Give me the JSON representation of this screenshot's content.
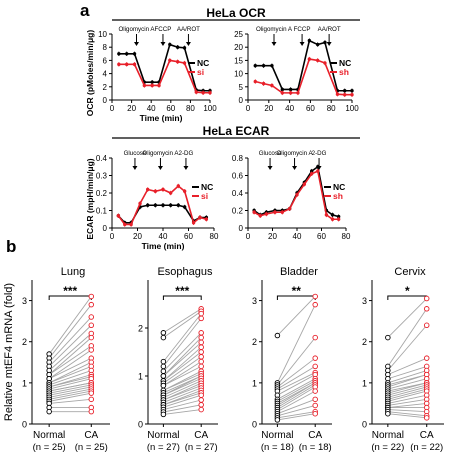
{
  "panel_labels": {
    "a": "a",
    "b": "b"
  },
  "headers": {
    "ocr": "HeLa OCR",
    "ecar": "HeLa ECAR"
  },
  "colors": {
    "nc": "#000000",
    "treat": "#e8202a",
    "grey_line": "#a6a6a6"
  },
  "chart_data": [
    {
      "type": "line",
      "ylabel": "OCR (pMoles/min/μg)",
      "xlabel": "Time (min)",
      "xlim": [
        0,
        100
      ],
      "ylim": [
        0,
        10
      ],
      "xticks": [
        0,
        20,
        40,
        60,
        80,
        100
      ],
      "yticks": [
        0,
        2,
        4,
        6,
        8,
        10
      ],
      "x_tick_labels": [
        "0",
        "20",
        "40",
        "60",
        "80",
        "100"
      ],
      "y_tick_labels": [
        "0",
        "2",
        "4",
        "6",
        "8",
        "10"
      ],
      "injections": [
        {
          "label": "Oligomycin A",
          "x": 25
        },
        {
          "label": "FCCP",
          "x": 52
        },
        {
          "label": "AA/ROT",
          "x": 78
        }
      ],
      "series": [
        {
          "name": "NC",
          "x": [
            7,
            15,
            23,
            33,
            41,
            48,
            59,
            67,
            74,
            86,
            93,
            100
          ],
          "values": [
            7.0,
            7.0,
            7.0,
            2.7,
            2.7,
            2.7,
            8.4,
            8.0,
            7.9,
            1.5,
            1.4,
            1.4
          ]
        },
        {
          "name": "si",
          "x": [
            7,
            15,
            23,
            33,
            41,
            48,
            59,
            67,
            74,
            86,
            93,
            100
          ],
          "values": [
            5.4,
            5.4,
            5.4,
            2.2,
            2.2,
            2.2,
            6.0,
            5.8,
            5.6,
            1.2,
            1.1,
            1.1
          ]
        }
      ],
      "legend": "right"
    },
    {
      "type": "line",
      "xlim": [
        0,
        100
      ],
      "ylim": [
        0,
        25
      ],
      "xticks": [
        0,
        20,
        40,
        60,
        80,
        100
      ],
      "yticks": [
        0,
        5,
        10,
        15,
        20,
        25
      ],
      "x_tick_labels": [
        "0",
        "20",
        "40",
        "60",
        "80",
        "100"
      ],
      "y_tick_labels": [
        "0",
        "5",
        "10",
        "15",
        "20",
        "25"
      ],
      "injections": [
        {
          "label": "Oligomycin A",
          "x": 25
        },
        {
          "label": "FCCP",
          "x": 52
        },
        {
          "label": "AA/ROT",
          "x": 78
        }
      ],
      "series": [
        {
          "name": "NC",
          "x": [
            7,
            15,
            23,
            33,
            41,
            48,
            59,
            67,
            74,
            86,
            93,
            100
          ],
          "values": [
            13.0,
            13.0,
            13.0,
            4.0,
            4.0,
            4.0,
            22.5,
            21.0,
            21.8,
            3.5,
            3.5,
            3.5
          ]
        },
        {
          "name": "sh",
          "x": [
            7,
            15,
            23,
            33,
            41,
            48,
            59,
            67,
            74,
            86,
            93,
            100
          ],
          "values": [
            7.0,
            6.2,
            5.5,
            2.7,
            2.7,
            2.7,
            15.5,
            15.0,
            14.0,
            2.2,
            2.0,
            2.0
          ]
        }
      ],
      "legend": "right"
    },
    {
      "type": "line",
      "ylabel": "ECAR (mpH/min/μg)",
      "xlabel": "Time (min)",
      "xlim": [
        0,
        80
      ],
      "ylim": [
        0,
        0.4
      ],
      "xticks": [
        0,
        20,
        40,
        60,
        80
      ],
      "yticks": [
        0,
        0.1,
        0.2,
        0.3,
        0.4
      ],
      "x_tick_labels": [
        "0",
        "20",
        "40",
        "60",
        "80"
      ],
      "y_tick_labels": [
        "0",
        "0.1",
        "0.2",
        "0.3",
        "0.4"
      ],
      "injections": [
        {
          "label": "Glucose",
          "x": 18
        },
        {
          "label": "Oligomycin A",
          "x": 38
        },
        {
          "label": "2-DG",
          "x": 58
        }
      ],
      "series": [
        {
          "name": "NC",
          "x": [
            5,
            10,
            15,
            22,
            28,
            34,
            40,
            46,
            52,
            57,
            64,
            69,
            74
          ],
          "values": [
            0.07,
            0.03,
            0.03,
            0.12,
            0.13,
            0.13,
            0.13,
            0.13,
            0.13,
            0.12,
            0.04,
            0.06,
            0.06
          ]
        },
        {
          "name": "si",
          "x": [
            5,
            10,
            15,
            22,
            28,
            34,
            40,
            46,
            52,
            57,
            64,
            69,
            74
          ],
          "values": [
            0.07,
            0.02,
            0.02,
            0.14,
            0.22,
            0.21,
            0.22,
            0.2,
            0.24,
            0.21,
            0.03,
            0.06,
            0.05
          ]
        }
      ],
      "legend": "right"
    },
    {
      "type": "line",
      "xlim": [
        0,
        80
      ],
      "ylim": [
        0,
        0.8
      ],
      "xticks": [
        0,
        20,
        40,
        60,
        80
      ],
      "yticks": [
        0,
        0.2,
        0.4,
        0.6,
        0.8
      ],
      "x_tick_labels": [
        "0",
        "20",
        "40",
        "60",
        "80"
      ],
      "y_tick_labels": [
        "0",
        "0.2",
        "0.4",
        "0.6",
        "0.8"
      ],
      "injections": [
        {
          "label": "Glucose",
          "x": 18
        },
        {
          "label": "Oligomycin A",
          "x": 38
        },
        {
          "label": "2-DG",
          "x": 58
        }
      ],
      "series": [
        {
          "name": "NC",
          "x": [
            5,
            10,
            15,
            22,
            28,
            34,
            40,
            46,
            52,
            57,
            64,
            69,
            74
          ],
          "values": [
            0.2,
            0.15,
            0.18,
            0.2,
            0.2,
            0.22,
            0.4,
            0.52,
            0.65,
            0.7,
            0.2,
            0.15,
            0.13
          ]
        },
        {
          "name": "sh",
          "x": [
            5,
            10,
            15,
            22,
            28,
            34,
            40,
            46,
            52,
            57,
            64,
            69,
            74
          ],
          "values": [
            0.18,
            0.14,
            0.16,
            0.18,
            0.18,
            0.22,
            0.38,
            0.5,
            0.62,
            0.65,
            0.15,
            0.1,
            0.1
          ]
        }
      ],
      "legend": "right"
    },
    {
      "type": "scatter",
      "subtype": "paired",
      "title": "Lung",
      "ylabel": "Relative mtEF4 mRNA (fold)",
      "ylim": [
        0,
        3.5
      ],
      "yticks": [
        0,
        1,
        2,
        3
      ],
      "y_tick_labels": [
        "0",
        "1",
        "2",
        "3"
      ],
      "categories": [
        "Normal",
        "CA"
      ],
      "n_labels": [
        "(n = 25)",
        "(n = 25)"
      ],
      "significance": "***",
      "pairs": [
        [
          1.7,
          3.1
        ],
        [
          1.6,
          2.9
        ],
        [
          1.5,
          2.6
        ],
        [
          1.4,
          2.4
        ],
        [
          1.3,
          2.2
        ],
        [
          1.2,
          2.1
        ],
        [
          1.2,
          1.9
        ],
        [
          1.1,
          1.8
        ],
        [
          1.1,
          1.6
        ],
        [
          1.0,
          1.5
        ],
        [
          1.0,
          1.4
        ],
        [
          0.95,
          1.3
        ],
        [
          0.9,
          1.2
        ],
        [
          0.9,
          1.15
        ],
        [
          0.85,
          1.1
        ],
        [
          0.8,
          1.0
        ],
        [
          0.8,
          1.0
        ],
        [
          0.75,
          0.95
        ],
        [
          0.7,
          0.9
        ],
        [
          0.65,
          0.85
        ],
        [
          0.6,
          0.8
        ],
        [
          0.55,
          0.75
        ],
        [
          0.5,
          0.6
        ],
        [
          0.4,
          0.4
        ],
        [
          0.3,
          0.3
        ]
      ]
    },
    {
      "type": "scatter",
      "subtype": "paired",
      "title": "Esophagus",
      "ylim": [
        0,
        3.0
      ],
      "yticks": [
        0,
        1,
        2
      ],
      "y_tick_labels": [
        "0",
        "1",
        "2"
      ],
      "categories": [
        "Normal",
        "CA"
      ],
      "n_labels": [
        "(n = 27)",
        "(n = 27)"
      ],
      "significance": "***",
      "pairs": [
        [
          1.9,
          2.4
        ],
        [
          1.8,
          2.35
        ],
        [
          1.3,
          2.3
        ],
        [
          1.2,
          2.2
        ],
        [
          1.1,
          1.9
        ],
        [
          1.0,
          1.8
        ],
        [
          1.0,
          1.7
        ],
        [
          0.9,
          1.6
        ],
        [
          0.9,
          1.5
        ],
        [
          0.85,
          1.4
        ],
        [
          0.8,
          1.3
        ],
        [
          0.8,
          1.2
        ],
        [
          0.7,
          1.1
        ],
        [
          0.7,
          1.05
        ],
        [
          0.65,
          1.0
        ],
        [
          0.6,
          1.0
        ],
        [
          0.6,
          0.95
        ],
        [
          0.55,
          0.9
        ],
        [
          0.5,
          0.85
        ],
        [
          0.5,
          0.8
        ],
        [
          0.45,
          0.75
        ],
        [
          0.4,
          0.7
        ],
        [
          0.4,
          0.65
        ],
        [
          0.35,
          0.6
        ],
        [
          0.3,
          0.5
        ],
        [
          0.25,
          0.4
        ],
        [
          0.2,
          0.3
        ]
      ]
    },
    {
      "type": "scatter",
      "subtype": "paired",
      "title": "Bladder",
      "ylim": [
        0,
        3.5
      ],
      "yticks": [
        0,
        1,
        2,
        3
      ],
      "y_tick_labels": [
        "0",
        "1",
        "2",
        "3"
      ],
      "categories": [
        "Normal",
        "CA"
      ],
      "n_labels": [
        "(n = 18)",
        "(n = 18)"
      ],
      "significance": "**",
      "pairs": [
        [
          2.15,
          3.1
        ],
        [
          1.0,
          2.9
        ],
        [
          0.95,
          2.1
        ],
        [
          0.9,
          1.6
        ],
        [
          0.85,
          1.4
        ],
        [
          0.8,
          1.25
        ],
        [
          0.7,
          1.2
        ],
        [
          0.6,
          1.1
        ],
        [
          0.55,
          1.05
        ],
        [
          0.5,
          1.0
        ],
        [
          0.45,
          1.0
        ],
        [
          0.4,
          0.95
        ],
        [
          0.35,
          0.9
        ],
        [
          0.3,
          0.8
        ],
        [
          0.25,
          0.6
        ],
        [
          0.2,
          0.45
        ],
        [
          0.15,
          0.3
        ],
        [
          0.1,
          0.25
        ]
      ]
    },
    {
      "type": "scatter",
      "subtype": "paired",
      "title": "Cervix",
      "ylim": [
        0,
        3.5
      ],
      "yticks": [
        0,
        1,
        2,
        3
      ],
      "y_tick_labels": [
        "0",
        "1",
        "2",
        "3"
      ],
      "categories": [
        "Normal",
        "CA"
      ],
      "n_labels": [
        "(n = 22)",
        "(n = 22)"
      ],
      "significance": "*",
      "pairs": [
        [
          2.1,
          3.05
        ],
        [
          1.4,
          2.8
        ],
        [
          1.3,
          2.4
        ],
        [
          1.2,
          1.6
        ],
        [
          1.1,
          1.4
        ],
        [
          1.0,
          1.3
        ],
        [
          0.95,
          1.2
        ],
        [
          0.9,
          1.2
        ],
        [
          0.85,
          1.1
        ],
        [
          0.8,
          1.0
        ],
        [
          0.75,
          1.0
        ],
        [
          0.7,
          0.95
        ],
        [
          0.65,
          0.9
        ],
        [
          0.6,
          0.85
        ],
        [
          0.55,
          0.8
        ],
        [
          0.5,
          0.7
        ],
        [
          0.45,
          0.6
        ],
        [
          0.4,
          0.5
        ],
        [
          0.4,
          0.4
        ],
        [
          0.35,
          0.3
        ],
        [
          0.3,
          0.2
        ],
        [
          0.25,
          0.15
        ]
      ]
    }
  ]
}
